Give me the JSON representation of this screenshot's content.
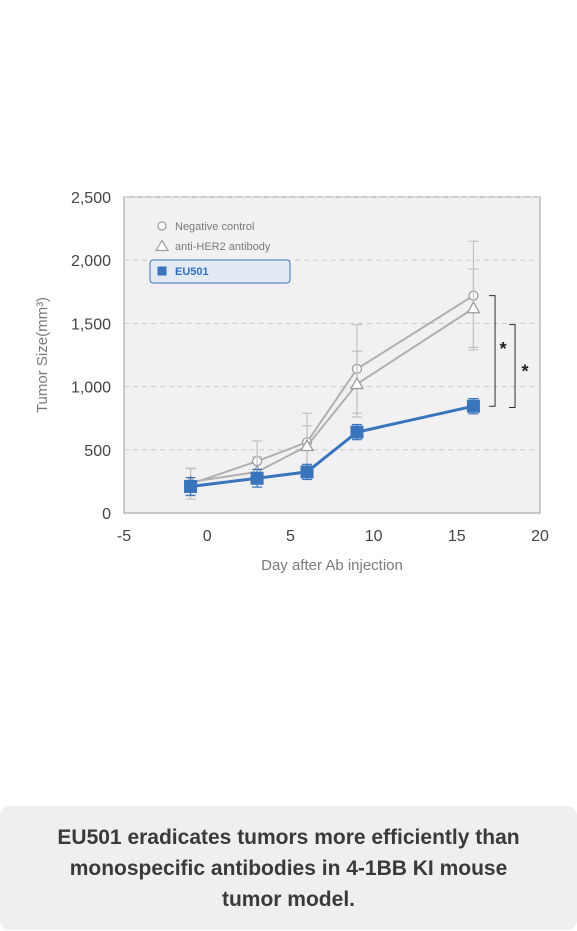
{
  "chart_data": {
    "type": "line",
    "xlabel": "Day after Ab injection",
    "ylabel": "Tumor Size(mm³)",
    "xlim": [
      -5,
      20
    ],
    "ylim": [
      0,
      2500
    ],
    "x_ticks": [
      "-5",
      "0",
      "5",
      "10",
      "15",
      "20"
    ],
    "y_ticks": [
      "0",
      "500",
      "1,000",
      "1,500",
      "2,000",
      "2,500"
    ],
    "grid": "horizontal dashed",
    "legend_position": "top-left",
    "series": [
      {
        "name": "Negative control",
        "marker": "circle",
        "color": "#b0b0b0",
        "points": [
          {
            "x": -1,
            "y": 230,
            "err": 120
          },
          {
            "x": 3,
            "y": 410,
            "err": 160
          },
          {
            "x": 6,
            "y": 560,
            "err": 230
          },
          {
            "x": 9,
            "y": 1140,
            "err": 350
          },
          {
            "x": 16,
            "y": 1720,
            "err": 430
          }
        ]
      },
      {
        "name": "anti-HER2 antibody",
        "marker": "triangle",
        "color": "#b0b0b0",
        "points": [
          {
            "x": -1,
            "y": 245,
            "err": 110
          },
          {
            "x": 3,
            "y": 325,
            "err": 120
          },
          {
            "x": 6,
            "y": 530,
            "err": 160
          },
          {
            "x": 9,
            "y": 1020,
            "err": 260
          },
          {
            "x": 16,
            "y": 1620,
            "err": 310
          }
        ]
      },
      {
        "name": "EU501",
        "marker": "square",
        "color": "#3a74bd",
        "points": [
          {
            "x": -1,
            "y": 210,
            "err": 70
          },
          {
            "x": 3,
            "y": 275,
            "err": 70
          },
          {
            "x": 6,
            "y": 325,
            "err": 60
          },
          {
            "x": 9,
            "y": 640,
            "err": 60
          },
          {
            "x": 16,
            "y": 845,
            "err": 60
          }
        ]
      }
    ],
    "annotations": [
      {
        "text": "*",
        "between": [
          "Negative control",
          "EU501"
        ]
      },
      {
        "text": "*",
        "between": [
          "anti-HER2 antibody",
          "EU501"
        ]
      }
    ]
  },
  "caption": "EU501 eradicates tumors more efficiently than monospecific antibodies in 4-1BB KI mouse tumor model."
}
